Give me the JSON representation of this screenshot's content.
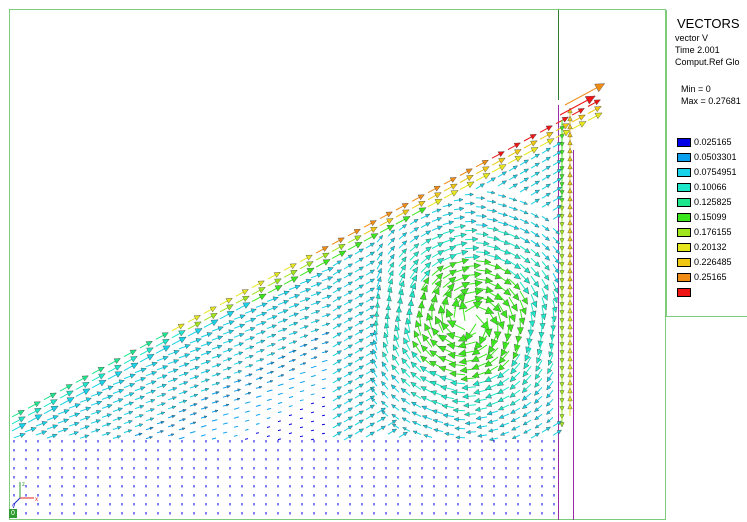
{
  "legend": {
    "title": "VECTORS",
    "variable": "vector V",
    "time": "Time 2.001",
    "frame": "Comput.Ref Glo",
    "min": "Min = 0",
    "max": "Max = 0.27681",
    "entries": [
      {
        "label": "0.025165",
        "color": "#0000e6"
      },
      {
        "label": "0.0503301",
        "color": "#0aa0f0"
      },
      {
        "label": "0.0754951",
        "color": "#17d2e8"
      },
      {
        "label": "0.10066",
        "color": "#1ee6c8"
      },
      {
        "label": "0.125825",
        "color": "#1ee68c"
      },
      {
        "label": "0.15099",
        "color": "#3ce61e"
      },
      {
        "label": "0.176155",
        "color": "#a0e61e"
      },
      {
        "label": "0.20132",
        "color": "#e6e61e"
      },
      {
        "label": "0.226485",
        "color": "#f0c814"
      },
      {
        "label": "0.25165",
        "color": "#f08c14"
      },
      {
        "label": "",
        "color": "#f01414"
      }
    ]
  },
  "triad": {
    "x": "x",
    "y": "y",
    "z": "z"
  },
  "corner_label": "0",
  "colors": {
    "frame": "#7ccc7c",
    "background": "#ffffff"
  }
}
